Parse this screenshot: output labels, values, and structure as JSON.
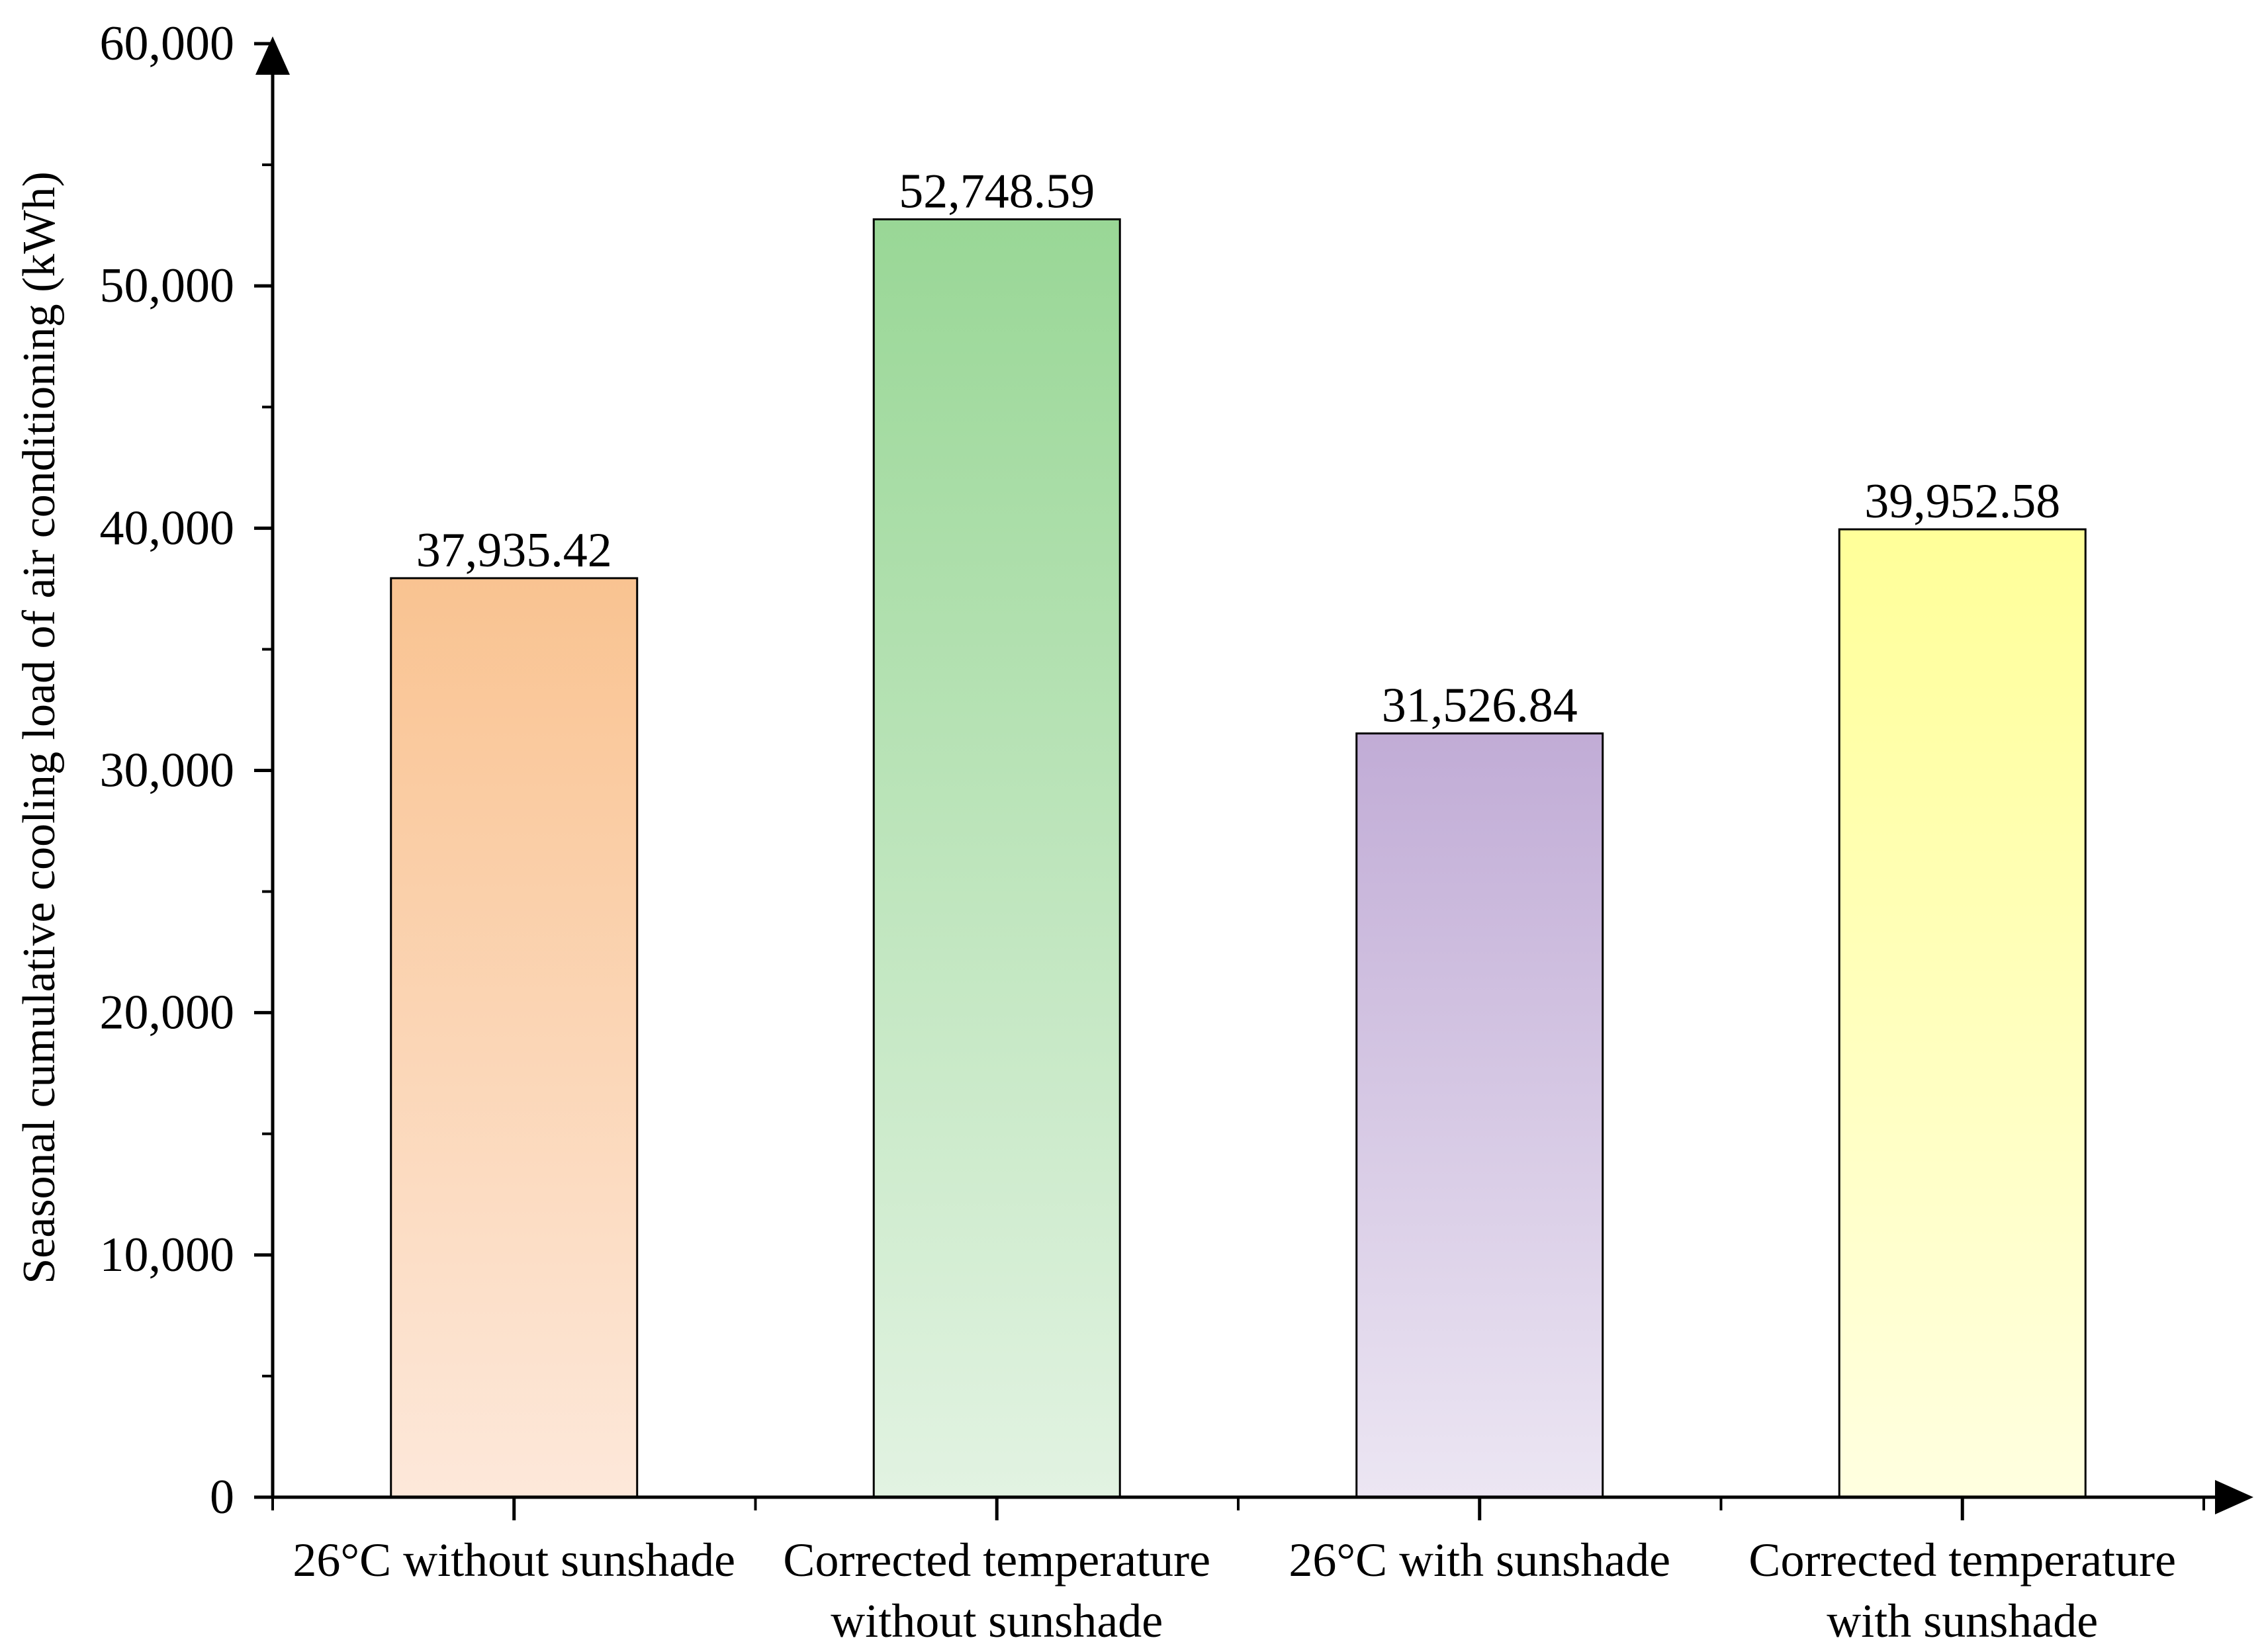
{
  "chart_data": {
    "type": "bar",
    "title": "",
    "xlabel": "",
    "ylabel": "Seasonal cumulative cooling load of air conditioning (kWh)",
    "ylim": [
      0,
      60000
    ],
    "yticks": [
      0,
      10000,
      20000,
      30000,
      40000,
      50000,
      60000
    ],
    "ytick_labels": [
      "0",
      "10,000",
      "20,000",
      "30,000",
      "40,000",
      "50,000",
      "60,000"
    ],
    "grid": false,
    "categories": [
      {
        "lines": [
          "26°C without sunshade"
        ]
      },
      {
        "lines": [
          "Corrected temperature",
          "without sunshade"
        ]
      },
      {
        "lines": [
          "26°C with sunshade"
        ]
      },
      {
        "lines": [
          "Corrected temperature",
          "with sunshade"
        ]
      }
    ],
    "values": [
      37935.42,
      52748.59,
      31526.84,
      39952.58
    ],
    "value_labels": [
      "37,935.42",
      "52,748.59",
      "31,526.84",
      "39,952.58"
    ],
    "colors": [
      {
        "top": "#F9C391",
        "bottom": "#FDE8DA"
      },
      {
        "top": "#99D796",
        "bottom": "#E2F3E2"
      },
      {
        "top": "#C1ACD6",
        "bottom": "#ECE6F3"
      },
      {
        "top": "#FFFF99",
        "bottom": "#FFFFE0"
      }
    ]
  }
}
